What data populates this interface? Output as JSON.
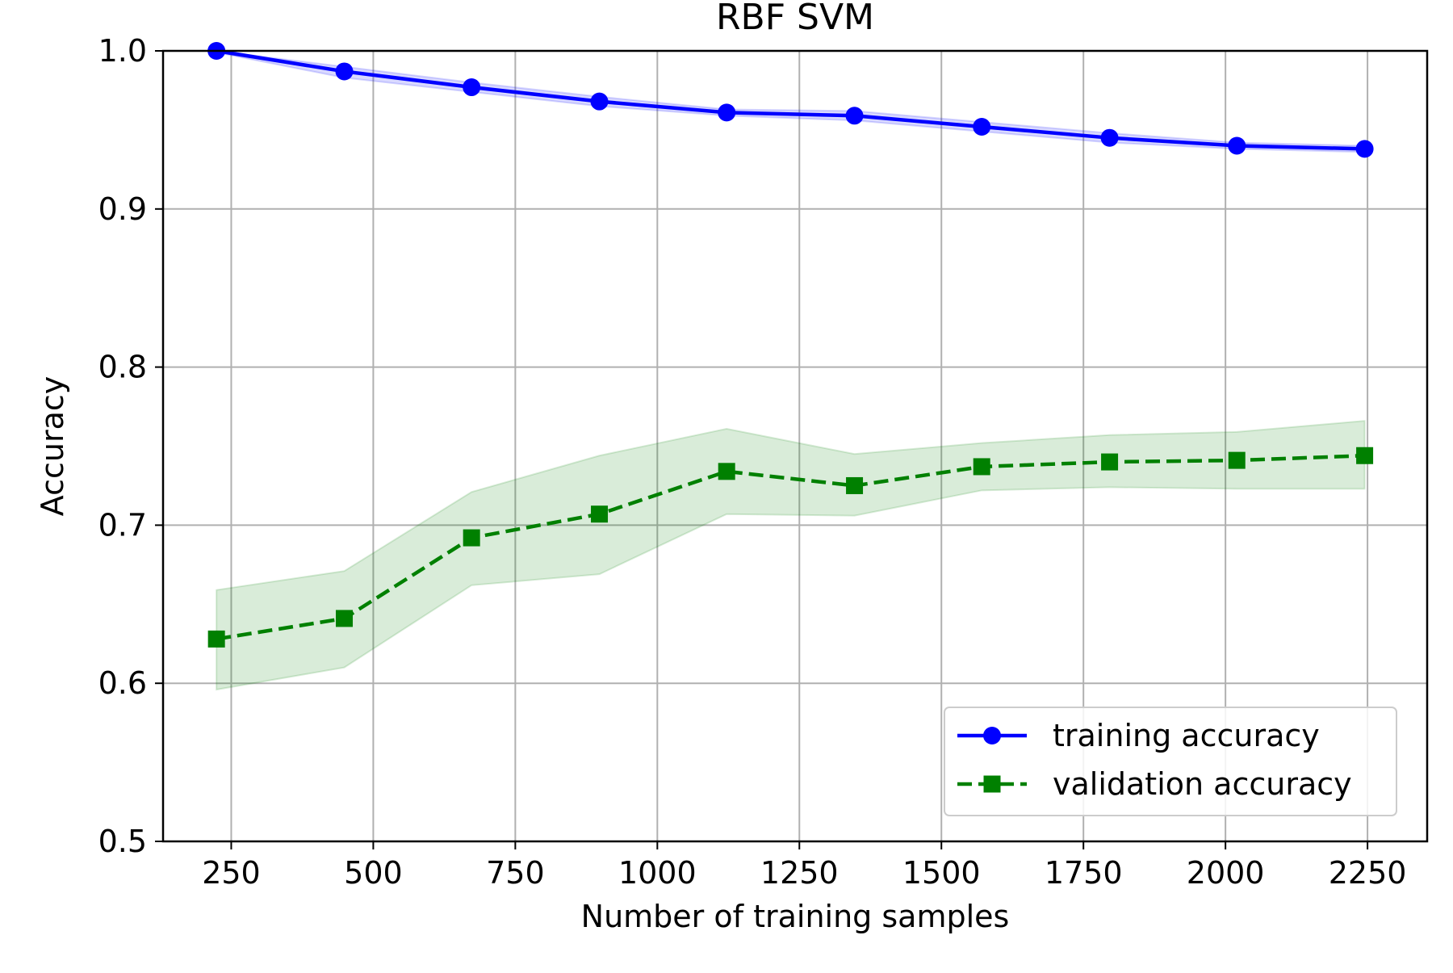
{
  "chart_data": {
    "type": "line",
    "title": "RBF SVM",
    "xlabel": "Number of training samples",
    "ylabel": "Accuracy",
    "xlim": [
      130,
      2355
    ],
    "ylim": [
      0.5,
      1.0
    ],
    "x_ticks": [
      250,
      500,
      750,
      1000,
      1250,
      1500,
      1750,
      2000,
      2250
    ],
    "y_ticks": [
      0.5,
      0.6,
      0.7,
      0.8,
      0.9,
      1.0
    ],
    "x_tick_labels": [
      "250",
      "500",
      "750",
      "1000",
      "1250",
      "1500",
      "1750",
      "2000",
      "2250"
    ],
    "y_tick_labels": [
      "0.5",
      "0.6",
      "0.7",
      "0.8",
      "0.9",
      "1.0"
    ],
    "grid": true,
    "legend_position": "lower-right",
    "x": [
      224,
      449,
      673,
      898,
      1122,
      1347,
      1571,
      1796,
      2020,
      2245
    ],
    "series": [
      {
        "name": "training accuracy",
        "style": "solid",
        "marker": "circle",
        "color": "#0000ff",
        "values": [
          1.0,
          0.987,
          0.977,
          0.968,
          0.961,
          0.959,
          0.952,
          0.945,
          0.94,
          0.938
        ],
        "lower": [
          0.999,
          0.983,
          0.974,
          0.965,
          0.959,
          0.956,
          0.949,
          0.942,
          0.938,
          0.936
        ],
        "upper": [
          1.0,
          0.99,
          0.98,
          0.971,
          0.963,
          0.962,
          0.955,
          0.948,
          0.942,
          0.94
        ]
      },
      {
        "name": "validation accuracy",
        "style": "dashed",
        "marker": "square",
        "color": "#008000",
        "values": [
          0.628,
          0.641,
          0.692,
          0.707,
          0.734,
          0.725,
          0.737,
          0.74,
          0.741,
          0.744
        ],
        "lower": [
          0.596,
          0.61,
          0.662,
          0.669,
          0.707,
          0.706,
          0.722,
          0.724,
          0.723,
          0.723
        ],
        "upper": [
          0.659,
          0.671,
          0.721,
          0.744,
          0.761,
          0.745,
          0.752,
          0.757,
          0.759,
          0.766
        ]
      }
    ]
  }
}
